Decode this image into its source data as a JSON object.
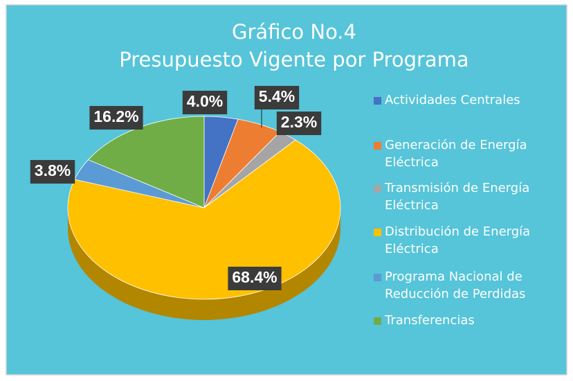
{
  "chart_data": {
    "type": "pie",
    "title": "Gráfico No.4",
    "subtitle": "Presupuesto Vigente por Programa",
    "categories": [
      "Actividades Centrales",
      "Generación de Energía Eléctrica",
      "Transmisión de Energía Eléctrica",
      "Distribución de Energía Eléctrica",
      "Programa Nacional de Reducción de Perdidas",
      "Transferencias"
    ],
    "values": [
      4,
      5.4,
      2.3,
      68.4,
      3.8,
      16.2
    ],
    "value_labels": [
      "4.0%",
      "5.4%",
      "2.3%",
      "68.4%",
      "3.8%",
      "16.2%"
    ],
    "colors": [
      "#4472c4",
      "#ed7d31",
      "#a5a5a5",
      "#ffc000",
      "#5b9bd5",
      "#70ad47"
    ],
    "legend": "right"
  }
}
